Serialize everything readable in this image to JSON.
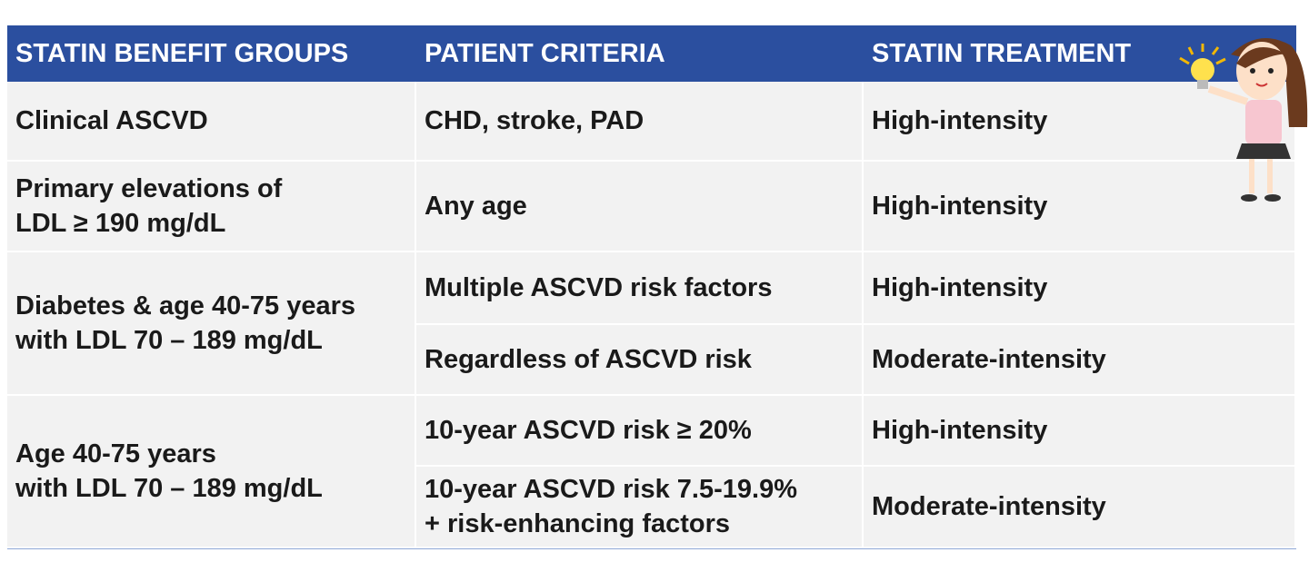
{
  "table": {
    "header": [
      "STATIN BENEFIT GROUPS",
      "PATIENT CRITERIA",
      "STATIN TREATMENT"
    ],
    "groups": [
      {
        "group": "Clinical ASCVD",
        "rows": [
          [
            "CHD, stroke, PAD",
            "High-intensity"
          ]
        ]
      },
      {
        "group": "Primary elevations of\nLDL ≥ 190 mg/dL",
        "rows": [
          [
            "Any age",
            "High-intensity"
          ]
        ]
      },
      {
        "group": "Diabetes & age 40-75 years\nwith LDL 70 – 189 mg/dL",
        "rows": [
          [
            "Multiple ASCVD risk factors",
            "High-intensity"
          ],
          [
            "Regardless of ASCVD risk",
            "Moderate-intensity"
          ]
        ]
      },
      {
        "group": "Age 40-75 years\nwith LDL 70 – 189 mg/dL",
        "rows": [
          [
            "10-year ASCVD risk ≥ 20%",
            "High-intensity"
          ],
          [
            "10-year ASCVD risk 7.5-19.9%\n+ risk-enhancing factors",
            "Moderate-intensity"
          ]
        ]
      }
    ]
  }
}
